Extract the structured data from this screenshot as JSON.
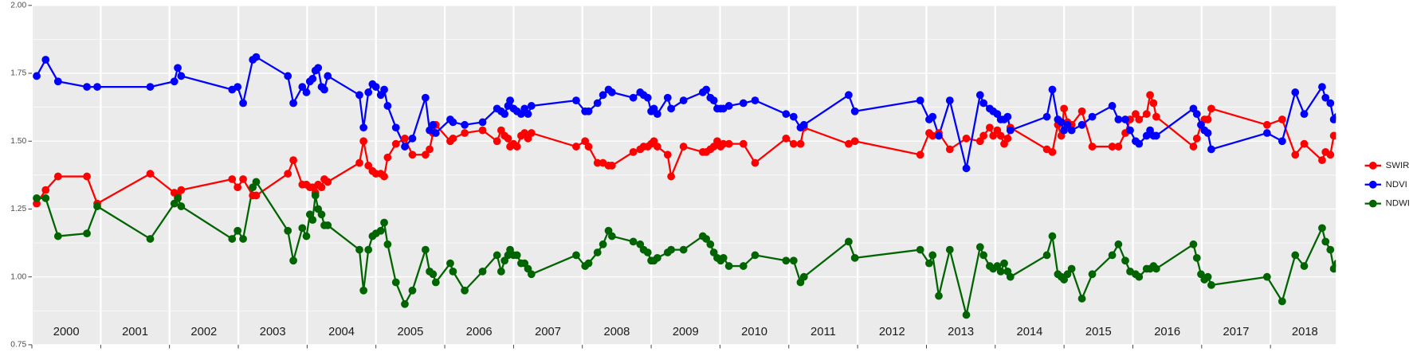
{
  "chart_data": {
    "type": "line",
    "x": [
      2000.07,
      2000.2,
      2000.38,
      2000.8,
      2000.95,
      2001.72,
      2002.07,
      2002.12,
      2002.17,
      2002.91,
      2002.99,
      2003.07,
      2003.21,
      2003.26,
      2003.72,
      2003.8,
      2003.93,
      2003.99,
      2004.04,
      2004.08,
      2004.12,
      2004.16,
      2004.21,
      2004.25,
      2004.3,
      2004.76,
      2004.82,
      2004.89,
      2004.95,
      2005.0,
      2005.07,
      2005.12,
      2005.17,
      2005.29,
      2005.42,
      2005.53,
      2005.72,
      2005.78,
      2005.83,
      2005.87,
      2006.08,
      2006.12,
      2006.29,
      2006.55,
      2006.76,
      2006.82,
      2006.87,
      2006.92,
      2006.95,
      2007.0,
      2007.05,
      2007.11,
      2007.16,
      2007.21,
      2007.26,
      2007.91,
      2008.04,
      2008.09,
      2008.22,
      2008.3,
      2008.38,
      2008.43,
      2008.74,
      2008.84,
      2008.89,
      2008.95,
      2009.0,
      2009.04,
      2009.09,
      2009.24,
      2009.29,
      2009.47,
      2009.75,
      2009.8,
      2009.86,
      2009.91,
      2009.96,
      2010.01,
      2010.05,
      2010.13,
      2010.34,
      2010.51,
      2010.96,
      2011.07,
      2011.17,
      2011.22,
      2011.87,
      2011.96,
      2012.91,
      2013.04,
      2013.09,
      2013.18,
      2013.34,
      2013.58,
      2013.78,
      2013.83,
      2013.92,
      2013.97,
      2014.03,
      2014.08,
      2014.13,
      2014.18,
      2014.22,
      2014.75,
      2014.83,
      2014.91,
      2014.96,
      2015.0,
      2015.05,
      2015.11,
      2015.26,
      2015.41,
      2015.7,
      2015.79,
      2015.89,
      2015.96,
      2016.04,
      2016.09,
      2016.2,
      2016.25,
      2016.3,
      2016.34,
      2016.88,
      2016.93,
      2016.99,
      2017.04,
      2017.09,
      2017.14,
      2017.95,
      2018.17,
      2018.36,
      2018.49,
      2018.75,
      2018.8,
      2018.87,
      2018.92,
      2018.97
    ],
    "series": [
      {
        "name": "SWIR",
        "color": "#ff0000",
        "values": [
          1.27,
          1.32,
          1.37,
          1.37,
          1.27,
          1.38,
          1.31,
          1.3,
          1.32,
          1.36,
          1.33,
          1.36,
          1.3,
          1.3,
          1.38,
          1.43,
          1.34,
          1.34,
          1.33,
          1.33,
          1.31,
          1.34,
          1.33,
          1.36,
          1.35,
          1.42,
          1.5,
          1.41,
          1.39,
          1.38,
          1.38,
          1.37,
          1.44,
          1.49,
          1.51,
          1.45,
          1.45,
          1.47,
          1.53,
          1.56,
          1.5,
          1.51,
          1.53,
          1.54,
          1.5,
          1.54,
          1.52,
          1.51,
          1.48,
          1.49,
          1.48,
          1.52,
          1.53,
          1.51,
          1.53,
          1.48,
          1.5,
          1.48,
          1.42,
          1.42,
          1.41,
          1.41,
          1.46,
          1.47,
          1.48,
          1.48,
          1.49,
          1.5,
          1.48,
          1.45,
          1.37,
          1.48,
          1.46,
          1.46,
          1.47,
          1.48,
          1.5,
          1.48,
          1.49,
          1.49,
          1.49,
          1.42,
          1.51,
          1.49,
          1.49,
          1.55,
          1.49,
          1.5,
          1.45,
          1.53,
          1.52,
          1.53,
          1.47,
          1.51,
          1.5,
          1.52,
          1.55,
          1.52,
          1.54,
          1.52,
          1.49,
          1.51,
          1.55,
          1.47,
          1.46,
          1.56,
          1.52,
          1.62,
          1.57,
          1.56,
          1.61,
          1.48,
          1.48,
          1.48,
          1.53,
          1.58,
          1.6,
          1.58,
          1.6,
          1.67,
          1.64,
          1.59,
          1.48,
          1.51,
          1.56,
          1.58,
          1.58,
          1.62,
          1.56,
          1.58,
          1.45,
          1.49,
          1.43,
          1.46,
          1.45,
          1.52,
          1.52
        ]
      },
      {
        "name": "NDVI",
        "color": "#0000ff",
        "values": [
          1.74,
          1.8,
          1.72,
          1.7,
          1.7,
          1.7,
          1.72,
          1.77,
          1.74,
          1.69,
          1.7,
          1.64,
          1.8,
          1.81,
          1.74,
          1.64,
          1.7,
          1.68,
          1.72,
          1.73,
          1.76,
          1.77,
          1.7,
          1.69,
          1.74,
          1.67,
          1.55,
          1.68,
          1.71,
          1.7,
          1.67,
          1.69,
          1.63,
          1.55,
          1.48,
          1.51,
          1.66,
          1.54,
          1.56,
          1.53,
          1.58,
          1.57,
          1.56,
          1.57,
          1.62,
          1.61,
          1.6,
          1.63,
          1.65,
          1.62,
          1.61,
          1.6,
          1.62,
          1.6,
          1.63,
          1.65,
          1.61,
          1.61,
          1.64,
          1.67,
          1.69,
          1.68,
          1.66,
          1.68,
          1.67,
          1.66,
          1.61,
          1.62,
          1.6,
          1.66,
          1.62,
          1.65,
          1.68,
          1.69,
          1.66,
          1.65,
          1.62,
          1.62,
          1.62,
          1.63,
          1.64,
          1.65,
          1.6,
          1.59,
          1.55,
          1.56,
          1.67,
          1.61,
          1.65,
          1.58,
          1.59,
          1.52,
          1.65,
          1.4,
          1.67,
          1.64,
          1.62,
          1.61,
          1.6,
          1.58,
          1.58,
          1.59,
          1.54,
          1.59,
          1.69,
          1.58,
          1.57,
          1.54,
          1.56,
          1.54,
          1.56,
          1.59,
          1.63,
          1.58,
          1.58,
          1.54,
          1.5,
          1.49,
          1.52,
          1.54,
          1.52,
          1.52,
          1.62,
          1.6,
          1.56,
          1.54,
          1.53,
          1.47,
          1.53,
          1.5,
          1.68,
          1.6,
          1.7,
          1.66,
          1.64,
          1.58,
          1.59
        ]
      },
      {
        "name": "NDWI",
        "color": "#006400",
        "values": [
          1.29,
          1.29,
          1.15,
          1.16,
          1.26,
          1.14,
          1.27,
          1.29,
          1.26,
          1.14,
          1.17,
          1.14,
          1.33,
          1.35,
          1.17,
          1.06,
          1.18,
          1.15,
          1.23,
          1.21,
          1.3,
          1.25,
          1.23,
          1.19,
          1.19,
          1.1,
          0.95,
          1.1,
          1.15,
          1.16,
          1.17,
          1.2,
          1.12,
          0.98,
          0.9,
          0.95,
          1.1,
          1.02,
          1.01,
          0.98,
          1.05,
          1.02,
          0.95,
          1.02,
          1.08,
          1.02,
          1.06,
          1.08,
          1.1,
          1.08,
          1.08,
          1.05,
          1.05,
          1.03,
          1.01,
          1.08,
          1.04,
          1.05,
          1.09,
          1.12,
          1.17,
          1.15,
          1.13,
          1.12,
          1.1,
          1.09,
          1.06,
          1.06,
          1.07,
          1.09,
          1.1,
          1.1,
          1.15,
          1.14,
          1.12,
          1.09,
          1.07,
          1.06,
          1.07,
          1.04,
          1.04,
          1.08,
          1.06,
          1.06,
          0.98,
          1.0,
          1.13,
          1.07,
          1.1,
          1.05,
          1.08,
          0.93,
          1.1,
          0.86,
          1.11,
          1.08,
          1.04,
          1.03,
          1.04,
          1.02,
          1.05,
          1.02,
          1.0,
          1.08,
          1.15,
          1.01,
          1.0,
          0.99,
          1.01,
          1.03,
          0.92,
          1.01,
          1.08,
          1.12,
          1.06,
          1.02,
          1.01,
          1.0,
          1.03,
          1.03,
          1.04,
          1.03,
          1.12,
          1.07,
          1.01,
          0.99,
          1.0,
          0.97,
          1.0,
          0.91,
          1.08,
          1.04,
          1.18,
          1.13,
          1.1,
          1.03,
          1.05
        ]
      }
    ],
    "xlim": [
      2000,
      2018.95
    ],
    "xticks": [
      2000,
      2001,
      2002,
      2003,
      2004,
      2005,
      2006,
      2007,
      2008,
      2009,
      2010,
      2011,
      2012,
      2013,
      2014,
      2015,
      2016,
      2017,
      2018
    ],
    "ylim": [
      0.75,
      2.0
    ],
    "yticks": [
      {
        "value": 0.75,
        "label": "0.75"
      },
      {
        "value": 1.0,
        "label": "1.00"
      },
      {
        "value": 1.25,
        "label": "1.25"
      },
      {
        "value": 1.5,
        "label": "1.50"
      },
      {
        "value": 1.75,
        "label": "1.75"
      },
      {
        "value": 2.0,
        "label": "2.00"
      }
    ],
    "grid": true,
    "legend": "right"
  }
}
